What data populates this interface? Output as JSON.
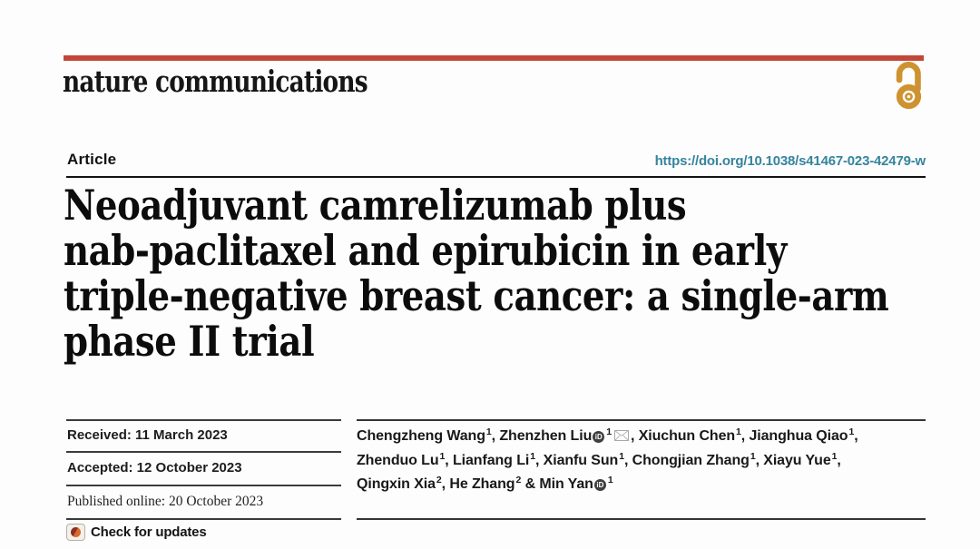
{
  "header": {
    "brand": "nature communications",
    "bar_color": "#c2473a",
    "open_access_icon": "open-access-lock-icon",
    "open_access_color": "#cf9230"
  },
  "article": {
    "label": "Article",
    "doi": "https://doi.org/10.1038/s41467-023-42479-w",
    "doi_color": "#35849e"
  },
  "title": {
    "lines": [
      "Neoadjuvant camrelizumab plus",
      "nab-paclitaxel and epirubicin in early",
      "triple-negative breast cancer: a single-arm",
      "phase II trial"
    ]
  },
  "dates": {
    "received": "Received: 11 March 2023",
    "accepted": "Accepted: 12 October 2023",
    "published": "Published online: 20 October 2023"
  },
  "check_for_updates": {
    "label": "Check for updates",
    "icon": "crossmark-icon"
  },
  "authors": {
    "lines": [
      [
        {
          "t": "text",
          "v": "Chengzheng Wang"
        },
        {
          "t": "sup",
          "v": "1"
        },
        {
          "t": "text",
          "v": ", Zhenzhen Liu"
        },
        {
          "t": "orcid"
        },
        {
          "t": "sup",
          "v": "1"
        },
        {
          "t": "mail"
        },
        {
          "t": "text",
          "v": ", Xiuchun Chen"
        },
        {
          "t": "sup",
          "v": "1"
        },
        {
          "t": "text",
          "v": ", Jianghua Qiao"
        },
        {
          "t": "sup",
          "v": "1"
        },
        {
          "t": "text",
          "v": ","
        }
      ],
      [
        {
          "t": "text",
          "v": "Zhenduo Lu"
        },
        {
          "t": "sup",
          "v": "1"
        },
        {
          "t": "text",
          "v": ", Lianfang Li"
        },
        {
          "t": "sup",
          "v": "1"
        },
        {
          "t": "text",
          "v": ", Xianfu Sun"
        },
        {
          "t": "sup",
          "v": "1"
        },
        {
          "t": "text",
          "v": ", Chongjian Zhang"
        },
        {
          "t": "sup",
          "v": "1"
        },
        {
          "t": "text",
          "v": ", Xiayu Yue"
        },
        {
          "t": "sup",
          "v": "1"
        },
        {
          "t": "text",
          "v": ","
        }
      ],
      [
        {
          "t": "text",
          "v": "Qingxin Xia"
        },
        {
          "t": "sup",
          "v": "2"
        },
        {
          "t": "text",
          "v": ", He Zhang"
        },
        {
          "t": "sup",
          "v": "2"
        },
        {
          "t": "text",
          "v": " & Min Yan"
        },
        {
          "t": "orcid"
        },
        {
          "t": "sup",
          "v": "1"
        }
      ]
    ]
  }
}
